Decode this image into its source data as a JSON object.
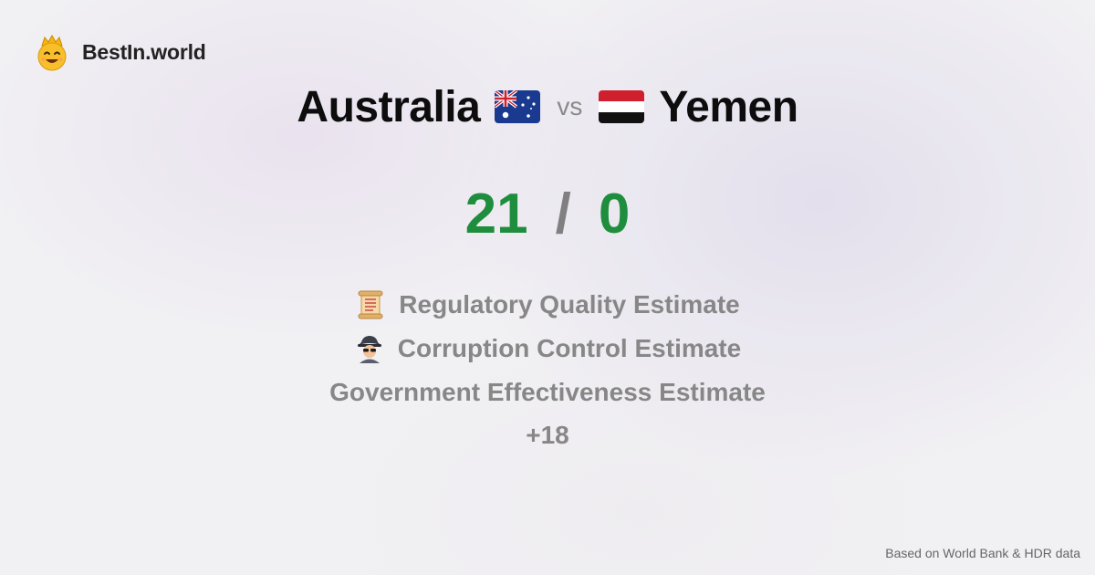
{
  "brand": {
    "name": "BestIn.world",
    "icon": "crown-smiley-icon"
  },
  "comparison": {
    "left_country": "Australia",
    "left_flag": "australia-flag-icon",
    "vs_label": "vs",
    "right_country": "Yemen",
    "right_flag": "yemen-flag-icon",
    "left_score": "21",
    "separator": "/",
    "right_score": "0"
  },
  "metrics": [
    {
      "icon": "scroll-icon",
      "label": "Regulatory Quality Estimate"
    },
    {
      "icon": "spy-icon",
      "label": "Corruption Control Estimate"
    },
    {
      "icon": "",
      "label": "Government Effectiveness Estimate"
    }
  ],
  "more_label": "+18",
  "footer": {
    "source": "Based on World Bank & HDR data"
  },
  "colors": {
    "score": "#1e8e3e",
    "muted": "#878787",
    "title": "#0d0d0d"
  }
}
